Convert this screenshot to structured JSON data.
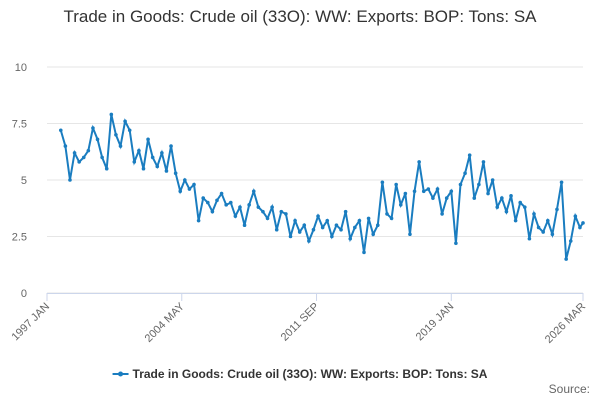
{
  "chart_data": {
    "type": "line",
    "title": "Trade in Goods: Crude oil (33O): WW: Exports: BOP: Tons: SA",
    "x": [
      "1997 OCT",
      "1998 JAN",
      "1998 APR",
      "1998 JUL",
      "1998 OCT",
      "1999 JAN",
      "1999 APR",
      "1999 JUL",
      "1999 OCT",
      "2000 JAN",
      "2000 APR",
      "2000 JUL",
      "2000 OCT",
      "2001 JAN",
      "2001 APR",
      "2001 JUL",
      "2001 OCT",
      "2002 JAN",
      "2002 APR",
      "2002 JUL",
      "2002 OCT",
      "2003 JAN",
      "2003 APR",
      "2003 JUL",
      "2003 OCT",
      "2004 JAN",
      "2004 APR",
      "2004 JUL",
      "2004 OCT",
      "2005 JAN",
      "2005 APR",
      "2005 JUL",
      "2005 OCT",
      "2006 JAN",
      "2006 APR",
      "2006 JUL",
      "2006 OCT",
      "2007 JAN",
      "2007 APR",
      "2007 JUL",
      "2007 OCT",
      "2008 JAN",
      "2008 APR",
      "2008 JUL",
      "2008 OCT",
      "2009 JAN",
      "2009 APR",
      "2009 JUL",
      "2009 OCT",
      "2010 JAN",
      "2010 APR",
      "2010 JUL",
      "2010 OCT",
      "2011 JAN",
      "2011 APR",
      "2011 JUL",
      "2011 OCT",
      "2012 JAN",
      "2012 APR",
      "2012 JUL",
      "2012 OCT",
      "2013 JAN",
      "2013 APR",
      "2013 JUL",
      "2013 OCT",
      "2014 JAN",
      "2014 APR",
      "2014 JUL",
      "2014 OCT",
      "2015 JAN",
      "2015 APR",
      "2015 JUL",
      "2015 OCT",
      "2016 JAN",
      "2016 APR",
      "2016 JUL",
      "2016 OCT",
      "2017 JAN",
      "2017 APR",
      "2017 JUL",
      "2017 OCT",
      "2018 JAN",
      "2018 APR",
      "2018 JUL",
      "2018 OCT",
      "2019 JAN",
      "2019 APR",
      "2019 JUL",
      "2019 OCT",
      "2020 JAN",
      "2020 APR",
      "2020 JUL",
      "2020 OCT",
      "2021 JAN",
      "2021 APR",
      "2021 JUL",
      "2021 OCT",
      "2022 JAN",
      "2022 APR",
      "2022 JUL",
      "2022 OCT",
      "2023 JAN",
      "2023 APR",
      "2023 JUL",
      "2023 OCT",
      "2024 JAN",
      "2024 APR",
      "2024 JUL",
      "2024 OCT",
      "2025 JAN",
      "2025 APR",
      "2025 JUL",
      "2025 OCT",
      "2026 JAN",
      "2026 MAR"
    ],
    "series": [
      {
        "name": "Trade in Goods: Crude oil (33O): WW: Exports: BOP: Tons: SA",
        "color": "#1a7dc0",
        "values": [
          7.2,
          6.5,
          5.0,
          6.2,
          5.8,
          6.0,
          6.3,
          7.3,
          6.8,
          6.0,
          5.5,
          7.9,
          7.0,
          6.5,
          7.6,
          7.2,
          5.8,
          6.3,
          5.5,
          6.8,
          6.0,
          5.6,
          6.2,
          5.4,
          6.5,
          5.3,
          4.5,
          5.0,
          4.6,
          4.8,
          3.2,
          4.2,
          4.0,
          3.6,
          4.1,
          4.4,
          3.9,
          4.0,
          3.4,
          3.8,
          3.0,
          3.9,
          4.5,
          3.8,
          3.6,
          3.3,
          3.8,
          2.8,
          3.6,
          3.5,
          2.5,
          3.2,
          2.7,
          3.0,
          2.3,
          2.8,
          3.4,
          2.9,
          3.2,
          2.5,
          3.0,
          2.8,
          3.6,
          2.4,
          2.9,
          3.2,
          1.8,
          3.3,
          2.6,
          3.0,
          4.9,
          3.5,
          3.3,
          4.8,
          3.9,
          4.4,
          2.6,
          4.5,
          5.8,
          4.5,
          4.6,
          4.2,
          4.6,
          3.5,
          4.2,
          4.5,
          2.2,
          4.8,
          5.3,
          6.1,
          4.2,
          4.8,
          5.8,
          4.4,
          5.0,
          3.8,
          4.2,
          3.6,
          4.3,
          3.2,
          4.0,
          3.8,
          2.4,
          3.5,
          2.9,
          2.7,
          3.2,
          2.6,
          3.7,
          4.9,
          1.5,
          2.3,
          3.4,
          2.9,
          3.1
        ]
      }
    ],
    "xlim": [
      "1997 JAN",
      "2026 MAR"
    ],
    "xticks": [
      "1997 JAN",
      "2004 MAY",
      "2011 SEP",
      "2019 JAN",
      "2026 MAR"
    ],
    "ylim": [
      0,
      10
    ],
    "yticks": [
      0,
      2.5,
      5,
      7.5,
      10
    ],
    "grid": true,
    "legend": "bottom",
    "source": "Source:"
  }
}
